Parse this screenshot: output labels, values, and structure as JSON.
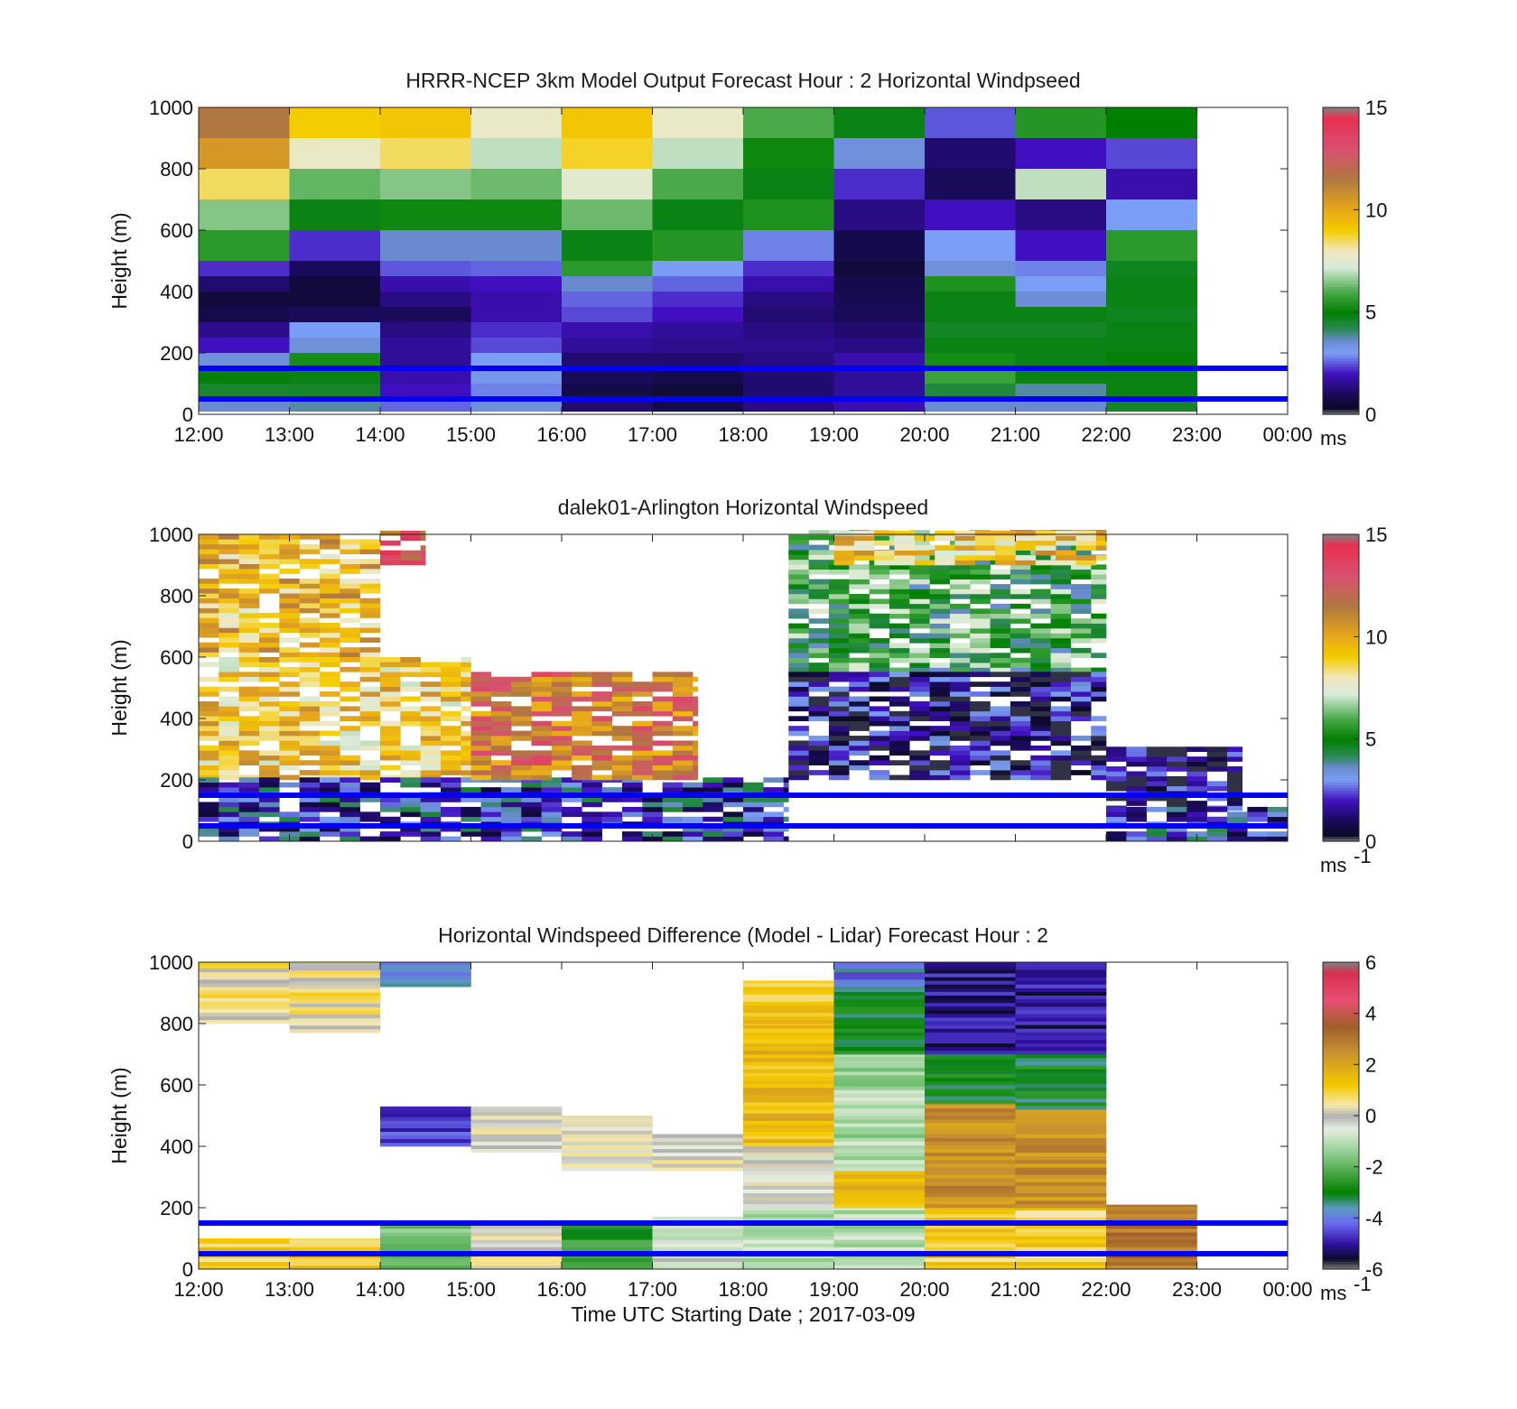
{
  "chart_data": [
    {
      "type": "heatmap",
      "title": "HRRR-NCEP 3km Model Output   Forecast Hour : 2 Horizontal Windpseed",
      "ylabel": "Height (m)",
      "xlabel": "",
      "ylim": [
        0,
        1000
      ],
      "y_ticks": [
        "0",
        "200",
        "400",
        "600",
        "800",
        "1000"
      ],
      "x_ticks": [
        "12:00",
        "13:00",
        "14:00",
        "15:00",
        "16:00",
        "17:00",
        "18:00",
        "19:00",
        "20:00",
        "21:00",
        "22:00",
        "23:00",
        "00:00"
      ],
      "colorbar": {
        "min": 0,
        "max": 15,
        "ticks": [
          "0",
          "5",
          "10",
          "15"
        ],
        "unit": "ms",
        "unit_sup": ""
      },
      "reference_lines_m": [
        150,
        50
      ],
      "hours": [
        "12:00",
        "13:00",
        "14:00",
        "15:00",
        "16:00",
        "17:00",
        "18:00",
        "19:00",
        "20:00",
        "21:00",
        "22:00"
      ],
      "heights_m": [
        950,
        850,
        750,
        650,
        550,
        450,
        400,
        350,
        300,
        250,
        200,
        150,
        100,
        50,
        20
      ],
      "values": [
        [
          11.5,
          9.0,
          9.2,
          7.8,
          9.2,
          7.8,
          6.0,
          4.8,
          2.5,
          5.5,
          5.0
        ],
        [
          10.5,
          7.8,
          8.5,
          7.0,
          8.8,
          7.0,
          5.2,
          3.4,
          1.2,
          2.0,
          2.4
        ],
        [
          8.5,
          6.2,
          6.5,
          6.3,
          7.5,
          6.0,
          4.8,
          2.2,
          1.0,
          7.0,
          1.8
        ],
        [
          6.5,
          4.8,
          5.2,
          5.2,
          6.3,
          4.8,
          5.4,
          1.4,
          2.0,
          1.4,
          3.0
        ],
        [
          5.6,
          2.2,
          3.6,
          3.6,
          4.8,
          5.5,
          2.8,
          0.8,
          3.0,
          2.0,
          5.6
        ],
        [
          2.2,
          1.0,
          2.5,
          2.6,
          5.6,
          3.0,
          2.2,
          0.6,
          3.4,
          2.8,
          4.7
        ],
        [
          1.2,
          0.6,
          1.8,
          2.0,
          3.6,
          2.6,
          1.8,
          0.8,
          5.4,
          3.0,
          4.8
        ],
        [
          0.6,
          0.6,
          1.4,
          1.8,
          2.6,
          2.2,
          1.4,
          0.9,
          4.8,
          3.5,
          4.8
        ],
        [
          0.8,
          1.0,
          1.0,
          1.8,
          2.4,
          2.0,
          1.2,
          1.0,
          4.8,
          4.8,
          4.7
        ],
        [
          1.5,
          3.0,
          1.4,
          2.2,
          1.8,
          1.6,
          1.4,
          1.2,
          4.6,
          4.6,
          4.8
        ],
        [
          2.0,
          3.4,
          1.6,
          2.4,
          1.6,
          1.5,
          1.5,
          1.4,
          4.8,
          4.8,
          4.8
        ],
        [
          3.4,
          5.3,
          1.6,
          3.0,
          1.2,
          1.2,
          1.4,
          1.8,
          5.3,
          4.8,
          4.9
        ],
        [
          4.9,
          4.8,
          1.8,
          3.2,
          1.0,
          0.8,
          1.2,
          1.6,
          5.8,
          4.8,
          4.8
        ],
        [
          4.5,
          4.6,
          2.0,
          2.8,
          0.8,
          0.6,
          1.2,
          1.6,
          4.4,
          3.8,
          4.8
        ],
        [
          3.6,
          3.8,
          2.6,
          3.4,
          1.2,
          0.8,
          1.4,
          1.8,
          3.6,
          3.6,
          4.6
        ]
      ]
    },
    {
      "type": "heatmap",
      "title": "dalek01-Arlington  Horizontal Windspeed",
      "ylabel": "Height (m)",
      "xlabel": "",
      "ylim": [
        0,
        1000
      ],
      "y_ticks": [
        "0",
        "200",
        "400",
        "600",
        "800",
        "1000"
      ],
      "x_ticks": [],
      "colorbar": {
        "min": 0,
        "max": 15,
        "ticks": [
          "0",
          "5",
          "10",
          "15"
        ],
        "unit": "ms",
        "unit_sup": "-1"
      },
      "reference_lines_m": [
        150,
        50
      ],
      "time_start": "12:00",
      "time_end": "00:00",
      "note": "Dense lidar profiles; segments give approximate windspeed by time and height range.",
      "segments": [
        {
          "t": [
            "12:00",
            "14:00"
          ],
          "z": [
            600,
            1000
          ],
          "speed": 9.5
        },
        {
          "t": [
            "12:00",
            "15:00"
          ],
          "z": [
            200,
            600
          ],
          "speed": 9.0
        },
        {
          "t": [
            "12:00",
            "18:30"
          ],
          "z": [
            0,
            200
          ],
          "speed": 2.5
        },
        {
          "t": [
            "14:00",
            "14:30"
          ],
          "z": [
            900,
            1000
          ],
          "speed": 13.0
        },
        {
          "t": [
            "15:00",
            "17:30"
          ],
          "z": [
            200,
            550
          ],
          "speed": 11.5
        },
        {
          "t": [
            "18:30",
            "22:00"
          ],
          "z": [
            550,
            1000
          ],
          "speed": 5.5
        },
        {
          "t": [
            "19:00",
            "22:00"
          ],
          "z": [
            900,
            1000
          ],
          "speed": 9.0
        },
        {
          "t": [
            "18:30",
            "22:00"
          ],
          "z": [
            200,
            550
          ],
          "speed": 1.5
        },
        {
          "t": [
            "22:00",
            "23:30"
          ],
          "z": [
            100,
            300
          ],
          "speed": 1.0
        },
        {
          "t": [
            "22:00",
            "24:00"
          ],
          "z": [
            0,
            100
          ],
          "speed": 2.5
        }
      ]
    },
    {
      "type": "heatmap",
      "title": "Horizontal Windspeed Difference (Model - Lidar) Forecast Hour : 2",
      "ylabel": "Height (m)",
      "xlabel": "Time UTC  Starting Date ; 2017-03-09",
      "ylim": [
        0,
        1000
      ],
      "y_ticks": [
        "0",
        "200",
        "400",
        "600",
        "800",
        "1000"
      ],
      "x_ticks": [
        "12:00",
        "13:00",
        "14:00",
        "15:00",
        "16:00",
        "17:00",
        "18:00",
        "19:00",
        "20:00",
        "21:00",
        "22:00",
        "23:00",
        "00:00"
      ],
      "colorbar": {
        "min": -6,
        "max": 6,
        "ticks": [
          "-6",
          "-4",
          "-2",
          "0",
          "2",
          "4",
          "6"
        ],
        "unit": "ms",
        "unit_sup": "-1"
      },
      "reference_lines_m": [
        150,
        50
      ],
      "hours": [
        "12:00",
        "13:00",
        "14:00",
        "15:00",
        "16:00",
        "17:00",
        "18:00",
        "19:00",
        "20:00",
        "21:00",
        "22:00"
      ],
      "profiles": [
        {
          "hour": "12:00",
          "layers": [
            [
              0,
              100,
              1.0
            ],
            [
              800,
              1000,
              0.5
            ]
          ]
        },
        {
          "hour": "13:00",
          "layers": [
            [
              0,
              100,
              1.0
            ],
            [
              770,
              1000,
              0.5
            ]
          ]
        },
        {
          "hour": "14:00",
          "layers": [
            [
              0,
              150,
              -1.8
            ],
            [
              400,
              530,
              -4.5
            ],
            [
              920,
              1000,
              -3.5
            ]
          ]
        },
        {
          "hour": "15:00",
          "layers": [
            [
              0,
              150,
              0.2
            ],
            [
              380,
              530,
              0.0
            ]
          ]
        },
        {
          "hour": "16:00",
          "layers": [
            [
              0,
              150,
              -2.5
            ],
            [
              320,
              500,
              0.0
            ]
          ]
        },
        {
          "hour": "17:00",
          "layers": [
            [
              0,
              170,
              -0.5
            ],
            [
              320,
              440,
              0.0
            ]
          ]
        },
        {
          "hour": "18:00",
          "layers": [
            [
              0,
              200,
              -1.0
            ],
            [
              200,
              400,
              -0.2
            ],
            [
              400,
              800,
              1.5
            ],
            [
              800,
              940,
              1.2
            ]
          ]
        },
        {
          "hour": "19:00",
          "layers": [
            [
              0,
              200,
              -1.0
            ],
            [
              200,
              320,
              1.5
            ],
            [
              320,
              700,
              -1.2
            ],
            [
              700,
              920,
              -3.0
            ],
            [
              920,
              1000,
              -4.0
            ]
          ]
        },
        {
          "hour": "20:00",
          "layers": [
            [
              0,
              200,
              1.0
            ],
            [
              200,
              540,
              2.5
            ],
            [
              540,
              700,
              -3.0
            ],
            [
              700,
              1000,
              -5.0
            ]
          ]
        },
        {
          "hour": "21:00",
          "layers": [
            [
              0,
              200,
              1.0
            ],
            [
              200,
              520,
              2.5
            ],
            [
              520,
              700,
              -3.0
            ],
            [
              700,
              1000,
              -5.0
            ]
          ]
        },
        {
          "hour": "22:00",
          "layers": [
            [
              0,
              210,
              3.0
            ]
          ]
        }
      ]
    }
  ]
}
